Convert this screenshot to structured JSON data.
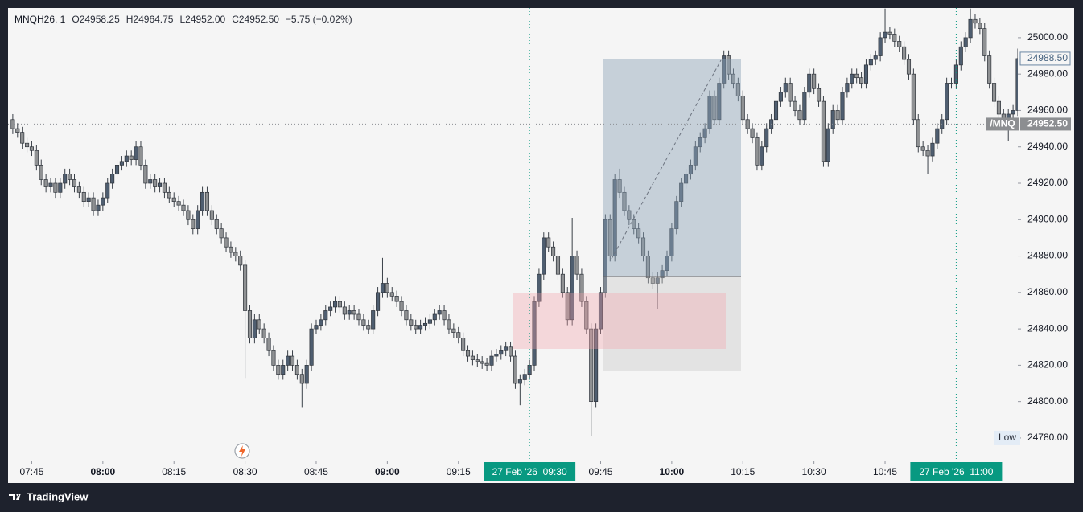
{
  "chart_data": {
    "type": "candlestick",
    "legend": {
      "symbol": "MNQH26, 1",
      "values": [
        "O24958.25",
        "H24964.75",
        "L24952.00",
        "C24952.50",
        "−5.75 (−0.02%)"
      ]
    },
    "xlim": [
      "07:40",
      "11:13"
    ],
    "xticks": [
      "07:45",
      "08:00",
      "08:15",
      "08:30",
      "08:45",
      "09:00",
      "09:15",
      "09:45",
      "10:00",
      "10:15",
      "10:30",
      "10:45"
    ],
    "time_markers": [
      {
        "value": "09:30",
        "label": "27 Feb '26  09:30"
      },
      {
        "value": "11:00",
        "label": "27 Feb '26  11:00"
      }
    ],
    "ylim": [
      24767.6,
      25016.3
    ],
    "yticks": [
      {
        "value": 24780,
        "label": "24780.00"
      },
      {
        "value": 24800,
        "label": "24800.00"
      },
      {
        "value": 24820,
        "label": "24820.00"
      },
      {
        "value": 24840,
        "label": "24840.00"
      },
      {
        "value": 24860,
        "label": "24860.00"
      },
      {
        "value": 24880,
        "label": "24880.00"
      },
      {
        "value": 24900,
        "label": "24900.00"
      },
      {
        "value": 24920,
        "label": "24920.00"
      },
      {
        "value": 24940,
        "label": "24940.00"
      },
      {
        "value": 24960,
        "label": "24960.00"
      },
      {
        "value": 24980,
        "label": "24980.00"
      },
      {
        "value": 25000,
        "label": "25000.00"
      }
    ],
    "grid": false,
    "low_label": {
      "value": 24780,
      "label": "Low"
    },
    "price_labels": [
      {
        "value": 24988.5,
        "label": "24988.50"
      },
      {
        "value": 24952.5,
        "label": "24952.50",
        "name": "/MNQ"
      }
    ],
    "up_color": "#4f5e70",
    "down_color": "#8f9193",
    "x": [
      "07:41",
      "07:42",
      "07:43",
      "07:44",
      "07:45",
      "07:46",
      "07:47",
      "07:48",
      "07:49",
      "07:50",
      "07:51",
      "07:52",
      "07:53",
      "07:54",
      "07:55",
      "07:56",
      "07:57",
      "07:58",
      "07:59",
      "08:00",
      "08:01",
      "08:02",
      "08:03",
      "08:04",
      "08:05",
      "08:06",
      "08:07",
      "08:08",
      "08:09",
      "08:10",
      "08:11",
      "08:12",
      "08:13",
      "08:14",
      "08:15",
      "08:16",
      "08:17",
      "08:18",
      "08:19",
      "08:20",
      "08:21",
      "08:22",
      "08:23",
      "08:24",
      "08:25",
      "08:26",
      "08:27",
      "08:28",
      "08:29",
      "08:30",
      "08:31",
      "08:32",
      "08:33",
      "08:34",
      "08:35",
      "08:36",
      "08:37",
      "08:38",
      "08:39",
      "08:40",
      "08:41",
      "08:42",
      "08:43",
      "08:44",
      "08:45",
      "08:46",
      "08:47",
      "08:48",
      "08:49",
      "08:50",
      "08:51",
      "08:52",
      "08:53",
      "08:54",
      "08:55",
      "08:56",
      "08:57",
      "08:58",
      "08:59",
      "09:00",
      "09:01",
      "09:02",
      "09:03",
      "09:04",
      "09:05",
      "09:06",
      "09:07",
      "09:08",
      "09:09",
      "09:10",
      "09:11",
      "09:12",
      "09:13",
      "09:14",
      "09:15",
      "09:16",
      "09:17",
      "09:18",
      "09:19",
      "09:20",
      "09:21",
      "09:22",
      "09:23",
      "09:24",
      "09:25",
      "09:26",
      "09:27",
      "09:28",
      "09:29",
      "09:30",
      "09:31",
      "09:32",
      "09:33",
      "09:34",
      "09:35",
      "09:36",
      "09:37",
      "09:38",
      "09:39",
      "09:40",
      "09:41",
      "09:42",
      "09:43",
      "09:44",
      "09:45",
      "09:46",
      "09:47",
      "09:48",
      "09:49",
      "09:50",
      "09:51",
      "09:52",
      "09:53",
      "09:54",
      "09:55",
      "09:56",
      "09:57",
      "09:58",
      "09:59",
      "10:00",
      "10:01",
      "10:02",
      "10:03",
      "10:04",
      "10:05",
      "10:06",
      "10:07",
      "10:08",
      "10:09",
      "10:10",
      "10:11",
      "10:12",
      "10:13",
      "10:14",
      "10:15",
      "10:16",
      "10:17",
      "10:18",
      "10:19",
      "10:20",
      "10:21",
      "10:22",
      "10:23",
      "10:24",
      "10:25",
      "10:26",
      "10:27",
      "10:28",
      "10:29",
      "10:30",
      "10:31",
      "10:32",
      "10:33",
      "10:34",
      "10:35",
      "10:36",
      "10:37",
      "10:38",
      "10:39",
      "10:40",
      "10:41",
      "10:42",
      "10:43",
      "10:44",
      "10:45",
      "10:46",
      "10:47",
      "10:48",
      "10:49",
      "10:50",
      "10:51",
      "10:52",
      "10:53",
      "10:54",
      "10:55",
      "10:56",
      "10:57",
      "10:58",
      "10:59",
      "11:00",
      "11:01",
      "11:02",
      "11:03",
      "11:04",
      "11:05",
      "11:06",
      "11:07",
      "11:08",
      "11:09",
      "11:10",
      "11:11",
      "11:12",
      "11:13"
    ],
    "series": [
      {
        "open": [
          24955,
          24950,
          24948,
          24942,
          24940,
          24938,
          24930,
          24922,
          24918,
          24920,
          24915,
          24920,
          24925,
          24922,
          24918,
          24915,
          24910,
          24912,
          24905,
          24908,
          24912,
          24920,
          24925,
          24930,
          24932,
          24935,
          24933,
          24940,
          24930,
          24920,
          24922,
          24918,
          24920,
          24915,
          24912,
          24910,
          24908,
          24905,
          24900,
          24895,
          24905,
          24915,
          24905,
          24900,
          24895,
          24890,
          24885,
          24882,
          24880,
          24875,
          24850,
          24835,
          24845,
          24840,
          24835,
          24828,
          24820,
          24815,
          24820,
          24825,
          24820,
          24815,
          24810,
          24820,
          24840,
          24842,
          24845,
          24850,
          24852,
          24855,
          24852,
          24848,
          24850,
          24848,
          24845,
          24842,
          24840,
          24850,
          24860,
          24865,
          24860,
          24858,
          24855,
          24850,
          24845,
          24842,
          24840,
          24842,
          24843,
          24845,
          24848,
          24850,
          24845,
          24840,
          24838,
          24835,
          24828,
          24825,
          24823,
          24822,
          24821,
          24820,
          24825,
          24826,
          24828,
          24830,
          24825,
          24810,
          24812,
          24815,
          24820,
          24855,
          24870,
          24890,
          24885,
          24880,
          24870,
          24860,
          24845,
          24880,
          24870,
          24855,
          24840,
          24800,
          24840,
          24860,
          24900,
          24880,
          24922,
          24915,
          24905,
          24900,
          24895,
          24890,
          24880,
          24868,
          24865,
          24868,
          24872,
          24880,
          24895,
          24910,
          24920,
          24925,
          24930,
          24940,
          24945,
          24950,
          24968,
          24955,
          24975,
          24990,
          24980,
          24975,
          24968,
          24955,
          24950,
          24945,
          24930,
          24940,
          24950,
          24955,
          24965,
          24970,
          24975,
          24965,
          24960,
          24955,
          24970,
          24980,
          24972,
          24965,
          24932,
          24950,
          24960,
          24955,
          24970,
          24975,
          24980,
          24978,
          24975,
          24985,
          24988,
          24990,
          25000,
          25003,
          25002,
          24998,
          24995,
          24988,
          24980,
          24955,
          24940,
          24938,
          24935,
          24942,
          24950,
          24955,
          24975,
          24975,
          24985,
          24995,
          25000,
          25010,
          25008,
          25005,
          24990,
          24975,
          24965,
          24958,
          24955,
          24958,
          24960
        ],
        "high": [
          24958,
          24953,
          24951,
          24945,
          24943,
          24941,
          24933,
          24925,
          24923,
          24923,
          24923,
          24928,
          24928,
          24925,
          24921,
          24918,
          24915,
          24915,
          24911,
          24915,
          24923,
          24928,
          24933,
          24935,
          24938,
          24938,
          24943,
          24943,
          24933,
          24925,
          24925,
          24923,
          24923,
          24918,
          24915,
          24913,
          24911,
          24908,
          24903,
          24908,
          24918,
          24918,
          24908,
          24903,
          24898,
          24893,
          24888,
          24885,
          24883,
          24878,
          24853,
          24848,
          24848,
          24843,
          24838,
          24831,
          24823,
          24823,
          24828,
          24828,
          24823,
          24818,
          24823,
          24843,
          24845,
          24848,
          24853,
          24855,
          24858,
          24858,
          24855,
          24853,
          24853,
          24851,
          24848,
          24845,
          24853,
          24863,
          24879,
          24868,
          24863,
          24861,
          24858,
          24853,
          24848,
          24845,
          24845,
          24846,
          24848,
          24851,
          24853,
          24853,
          24848,
          24843,
          24841,
          24838,
          24831,
          24828,
          24826,
          24825,
          24824,
          24828,
          24829,
          24831,
          24833,
          24833,
          24828,
          24815,
          24818,
          24823,
          24858,
          24873,
          24893,
          24893,
          24888,
          24883,
          24873,
          24863,
          24901,
          24883,
          24873,
          24858,
          24843,
          24843,
          24863,
          24903,
          24903,
          24925,
          24928,
          24918,
          24908,
          24903,
          24898,
          24893,
          24883,
          24871,
          24871,
          24875,
          24883,
          24898,
          24913,
          24923,
          24928,
          24933,
          24943,
          24948,
          24953,
          24971,
          24971,
          24978,
          24993,
          24993,
          24983,
          24978,
          24971,
          24958,
          24953,
          24948,
          24943,
          24953,
          24958,
          24968,
          24973,
          24978,
          24978,
          24968,
          24963,
          24973,
          24983,
          24983,
          24975,
          24968,
          24953,
          24963,
          24963,
          24973,
          24978,
          24983,
          24983,
          24981,
          24988,
          24991,
          24993,
          25003,
          25016,
          25006,
          25005,
          25001,
          24998,
          24991,
          24983,
          24958,
          24943,
          24941,
          24945,
          24953,
          24958,
          24978,
          24978,
          24988,
          24998,
          25003,
          25016,
          25013,
          25011,
          25008,
          24993,
          24978,
          24968,
          24961,
          24961,
          24963,
          24994
        ],
        "low": [
          24947,
          24945,
          24939,
          24937,
          24935,
          24927,
          24919,
          24915,
          24915,
          24912,
          24912,
          24917,
          24919,
          24915,
          24912,
          24907,
          24907,
          24902,
          24902,
          24905,
          24909,
          24917,
          24922,
          24927,
          24929,
          24930,
          24930,
          24927,
          24917,
          24917,
          24915,
          24915,
          24912,
          24909,
          24907,
          24905,
          24902,
          24897,
          24892,
          24892,
          24902,
          24902,
          24897,
          24892,
          24887,
          24882,
          24879,
          24877,
          24872,
          24813,
          24832,
          24832,
          24837,
          24832,
          24825,
          24817,
          24812,
          24812,
          24817,
          24817,
          24812,
          24797,
          24807,
          24817,
          24837,
          24839,
          24842,
          24847,
          24849,
          24849,
          24845,
          24845,
          24845,
          24842,
          24839,
          24837,
          24837,
          24847,
          24857,
          24857,
          24855,
          24852,
          24847,
          24842,
          24839,
          24837,
          24837,
          24839,
          24840,
          24842,
          24845,
          24842,
          24837,
          24835,
          24832,
          24825,
          24822,
          24820,
          24819,
          24818,
          24817,
          24817,
          24822,
          24823,
          24825,
          24822,
          24807,
          24798,
          24809,
          24812,
          24817,
          24852,
          24867,
          24882,
          24877,
          24867,
          24857,
          24842,
          24842,
          24867,
          24852,
          24837,
          24781,
          24797,
          24837,
          24857,
          24877,
          24877,
          24912,
          24902,
          24897,
          24892,
          24887,
          24877,
          24865,
          24862,
          24851,
          24865,
          24869,
          24877,
          24892,
          24907,
          24917,
          24922,
          24927,
          24937,
          24942,
          24947,
          24952,
          24952,
          24972,
          24977,
          24972,
          24965,
          24952,
          24947,
          24942,
          24927,
          24927,
          24937,
          24947,
          24952,
          24962,
          24967,
          24962,
          24957,
          24952,
          24952,
          24967,
          24969,
          24962,
          24929,
          24929,
          24947,
          24952,
          24952,
          24967,
          24972,
          24975,
          24972,
          24972,
          24982,
          24985,
          24987,
          24997,
          24999,
          24995,
          24992,
          24985,
          24977,
          24952,
          24937,
          24935,
          24925,
          24932,
          24939,
          24947,
          24952,
          24972,
          24972,
          24982,
          24992,
          24997,
          25005,
          25002,
          24987,
          24972,
          24962,
          24955,
          24952,
          24943,
          24955,
          24957
        ],
        "close": [
          24950,
          24948,
          24942,
          24940,
          24938,
          24930,
          24922,
          24918,
          24920,
          24915,
          24920,
          24925,
          24922,
          24918,
          24915,
          24910,
          24912,
          24905,
          24908,
          24912,
          24920,
          24925,
          24930,
          24932,
          24935,
          24933,
          24940,
          24930,
          24920,
          24922,
          24918,
          24920,
          24915,
          24912,
          24910,
          24908,
          24905,
          24900,
          24895,
          24905,
          24915,
          24905,
          24900,
          24895,
          24890,
          24885,
          24882,
          24880,
          24875,
          24850,
          24835,
          24845,
          24840,
          24835,
          24828,
          24820,
          24815,
          24820,
          24825,
          24820,
          24815,
          24810,
          24820,
          24840,
          24842,
          24845,
          24850,
          24852,
          24855,
          24852,
          24848,
          24850,
          24848,
          24845,
          24842,
          24840,
          24850,
          24860,
          24865,
          24860,
          24858,
          24855,
          24850,
          24845,
          24842,
          24840,
          24842,
          24843,
          24845,
          24848,
          24850,
          24845,
          24840,
          24838,
          24835,
          24828,
          24825,
          24823,
          24822,
          24821,
          24820,
          24825,
          24826,
          24828,
          24830,
          24825,
          24810,
          24812,
          24815,
          24820,
          24855,
          24870,
          24890,
          24885,
          24880,
          24870,
          24860,
          24845,
          24880,
          24870,
          24855,
          24840,
          24800,
          24840,
          24860,
          24900,
          24880,
          24922,
          24915,
          24905,
          24900,
          24895,
          24890,
          24880,
          24868,
          24865,
          24868,
          24872,
          24880,
          24895,
          24910,
          24920,
          24925,
          24930,
          24940,
          24945,
          24950,
          24968,
          24955,
          24975,
          24990,
          24980,
          24975,
          24968,
          24955,
          24950,
          24945,
          24930,
          24940,
          24950,
          24955,
          24965,
          24970,
          24975,
          24965,
          24960,
          24955,
          24970,
          24980,
          24972,
          24965,
          24932,
          24950,
          24960,
          24955,
          24970,
          24975,
          24980,
          24978,
          24975,
          24985,
          24988,
          24990,
          25000,
          25003,
          25002,
          24998,
          24995,
          24988,
          24980,
          24955,
          24940,
          24938,
          24935,
          24942,
          24950,
          24955,
          24975,
          24975,
          24985,
          24995,
          25000,
          25010,
          25008,
          25005,
          24990,
          24975,
          24965,
          24958,
          24955,
          24958,
          24960,
          24988.5
        ]
      }
    ]
  },
  "footer": {
    "brand": "TradingView"
  }
}
